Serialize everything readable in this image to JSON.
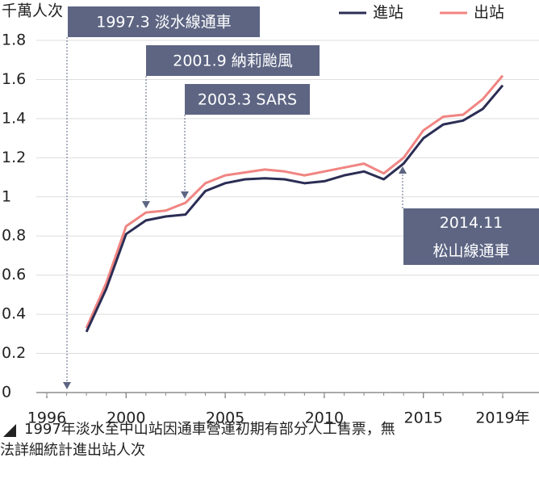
{
  "chart_data": {
    "type": "line",
    "y_label": "千萬人次",
    "x": [
      1998,
      1999,
      2000,
      2001,
      2002,
      2003,
      2004,
      2005,
      2006,
      2007,
      2008,
      2009,
      2010,
      2011,
      2012,
      2013,
      2014,
      2015,
      2016,
      2017,
      2018,
      2019
    ],
    "series": [
      {
        "name": "進站",
        "color": "#2b2d54",
        "values": [
          0.31,
          0.53,
          0.81,
          0.88,
          0.9,
          0.91,
          1.03,
          1.07,
          1.09,
          1.095,
          1.09,
          1.07,
          1.08,
          1.11,
          1.13,
          1.09,
          1.17,
          1.3,
          1.37,
          1.39,
          1.45,
          1.57
        ]
      },
      {
        "name": "出站",
        "color": "#f08582",
        "values": [
          0.33,
          0.56,
          0.85,
          0.92,
          0.93,
          0.97,
          1.07,
          1.11,
          1.125,
          1.14,
          1.13,
          1.11,
          1.13,
          1.15,
          1.17,
          1.12,
          1.2,
          1.34,
          1.41,
          1.42,
          1.5,
          1.62
        ]
      }
    ],
    "xlim": [
      1996,
      2019
    ],
    "xticks": [
      1996,
      2000,
      2005,
      2010,
      2015,
      {
        "value": 2019,
        "label": "2019年"
      }
    ],
    "ylim": [
      0,
      1.8
    ],
    "yticks": [
      0,
      0.2,
      0.4,
      0.6,
      0.8,
      1,
      1.2,
      1.4,
      1.6,
      1.8
    ],
    "grid": true,
    "legend": "top-right",
    "annotations": [
      [
        "1997.3 淡水線通車"
      ],
      [
        "2001.9 納莉颱風"
      ],
      [
        "2003.3 SARS"
      ],
      [
        "2014.11",
        "松山線通車"
      ]
    ],
    "note": "1997年淡水至中山站因通車營運初期有部分人工售票，無法詳細統計進出站人次"
  }
}
